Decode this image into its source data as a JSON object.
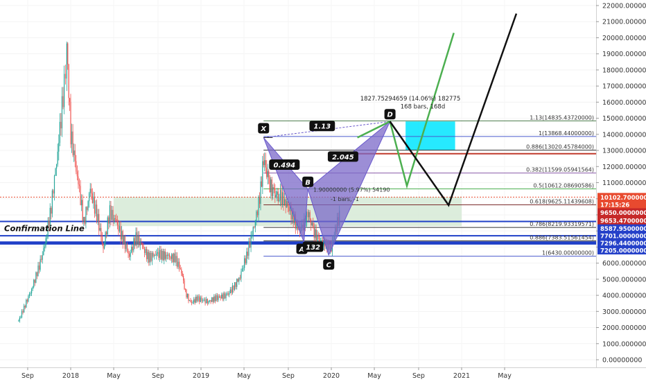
{
  "chart_data": {
    "type": "candlestick",
    "price_axis": {
      "ticks": [
        "22000.00000000",
        "21000.00000000",
        "20000.00000000",
        "19000.00000000",
        "18000.00000000",
        "17000.00000000",
        "16000.00000000",
        "15000.00000000",
        "14000.00000000",
        "13000.00000000",
        "12000.00000000",
        "11000.00000000",
        "10000.00000000",
        "9000.00000000",
        "8000.00000000",
        "7000.00000000",
        "6000.00000000",
        "5000.00000000",
        "4000.00000000",
        "3000.00000000",
        "2000.00000000",
        "1000.00000000",
        "0.00000000"
      ],
      "range": [
        -500,
        22500
      ]
    },
    "time_axis": {
      "labels": [
        "Sep",
        "2018",
        "May",
        "Sep",
        "2019",
        "May",
        "Sep",
        "2020",
        "May",
        "Sep",
        "2021",
        "May"
      ]
    },
    "price_series": [
      [
        2017.6,
        2400
      ],
      [
        2017.65,
        3400
      ],
      [
        2017.7,
        4400
      ],
      [
        2017.75,
        5600
      ],
      [
        2017.8,
        7000
      ],
      [
        2017.85,
        9500
      ],
      [
        2017.9,
        13000
      ],
      [
        2017.95,
        17000
      ],
      [
        2017.97,
        19500
      ],
      [
        2018.0,
        14000
      ],
      [
        2018.05,
        11500
      ],
      [
        2018.1,
        8500
      ],
      [
        2018.15,
        10500
      ],
      [
        2018.2,
        9000
      ],
      [
        2018.25,
        7000
      ],
      [
        2018.3,
        9200
      ],
      [
        2018.35,
        8500
      ],
      [
        2018.4,
        7500
      ],
      [
        2018.45,
        6500
      ],
      [
        2018.5,
        7600
      ],
      [
        2018.55,
        7000
      ],
      [
        2018.6,
        6300
      ],
      [
        2018.65,
        6600
      ],
      [
        2018.7,
        6500
      ],
      [
        2018.75,
        6400
      ],
      [
        2018.8,
        6300
      ],
      [
        2018.85,
        5500
      ],
      [
        2018.88,
        4200
      ],
      [
        2018.92,
        3500
      ],
      [
        2018.97,
        3800
      ],
      [
        2019.05,
        3600
      ],
      [
        2019.1,
        3800
      ],
      [
        2019.2,
        4000
      ],
      [
        2019.25,
        4500
      ],
      [
        2019.3,
        5200
      ],
      [
        2019.35,
        6500
      ],
      [
        2019.4,
        8000
      ],
      [
        2019.45,
        10000
      ],
      [
        2019.48,
        12500
      ],
      [
        2019.52,
        11000
      ],
      [
        2019.56,
        10300
      ],
      [
        2019.6,
        10200
      ],
      [
        2019.65,
        9800
      ],
      [
        2019.7,
        9000
      ],
      [
        2019.75,
        8000
      ],
      [
        2019.8,
        8500
      ],
      [
        2019.82,
        9200
      ],
      [
        2019.86,
        8000
      ],
      [
        2019.9,
        7400
      ],
      [
        2019.95,
        7200
      ],
      [
        2020.0,
        7000
      ],
      [
        2020.03,
        8000
      ],
      [
        2020.07,
        9200
      ]
    ],
    "harmonic_pattern": {
      "points": [
        {
          "label": "X",
          "date": 2019.48,
          "price": 13800
        },
        {
          "label": "A",
          "date": 2019.79,
          "price": 7300
        },
        {
          "label": "B",
          "date": 2019.82,
          "price": 10600
        },
        {
          "label": "C",
          "date": 2019.98,
          "price": 6500
        },
        {
          "label": "D",
          "date": 2020.45,
          "price": 14800
        }
      ],
      "ratios": [
        {
          "label": "0.494",
          "date": 2019.64,
          "price": 12100
        },
        {
          "label": "1.13",
          "date": 2019.93,
          "price": 14500
        },
        {
          "label": "2.045",
          "date": 2020.09,
          "price": 12600
        },
        {
          "label": "132",
          "date": 2019.86,
          "price": 7000
        }
      ]
    },
    "fib_levels": [
      {
        "label": "1.13(14835.43720000)",
        "price": 14835,
        "color": "#4a7a4a"
      },
      {
        "label": "1(13868.44000000)",
        "price": 13868,
        "color": "#4a5acd"
      },
      {
        "label": "0.886(13020.45784000)",
        "price": 13020,
        "color": "#333333"
      },
      {
        "label": "0.382(11599.05941564)",
        "price": 11599,
        "color": "#8a5aa8"
      },
      {
        "label": "0.5(10612.08690586)",
        "price": 10612,
        "color": "#4caf50"
      },
      {
        "label": "0.618(9625.11439608)",
        "price": 9625,
        "color": "#7a2a2a"
      },
      {
        "label": "0.786(8219.93319571)",
        "price": 8220,
        "color": "#333333"
      },
      {
        "label": "0.886(7383.51561454)",
        "price": 7383,
        "color": "#333333"
      },
      {
        "label": "1(6430.00000000)",
        "price": 6430,
        "color": "#4a5acd"
      }
    ],
    "price_labels": [
      {
        "text": "10102.70000000",
        "price": 10102,
        "color": "#e84a2f"
      },
      {
        "text": "17:15:26",
        "price": 9650,
        "color": "#e84a2f"
      },
      {
        "text": "9650.00000000",
        "price": 9150,
        "color": "#ffffff"
      },
      {
        "text": "9653.47000000",
        "price": 8650,
        "color": "#ffffff"
      },
      {
        "text": "8587.95000000",
        "price": 8150,
        "color": "#2541c9"
      },
      {
        "text": "7701.00000000",
        "price": 7700,
        "color": "#2541c9"
      },
      {
        "text": "7296.44000000",
        "price": 7250,
        "color": "#2541c9"
      },
      {
        "text": "7205.00000000",
        "price": 6800,
        "color": "#2541c9"
      }
    ],
    "annotations": {
      "measure_top": "1827.75294659 (14.06%) 182775",
      "measure_bottom": "168 bars, 168d",
      "b_measure": "1.90000000 (5.97%) 54190",
      "b_bars": "-1 bars, -1",
      "confirmation": "Confirmation Line"
    },
    "green_projection": [
      [
        2020.2,
        13800
      ],
      [
        2020.45,
        14800
      ],
      [
        2020.58,
        10800
      ],
      [
        2020.94,
        20300
      ]
    ],
    "black_projection": [
      [
        2020.45,
        14800
      ],
      [
        2020.9,
        9600
      ],
      [
        2021.42,
        21500
      ]
    ]
  }
}
